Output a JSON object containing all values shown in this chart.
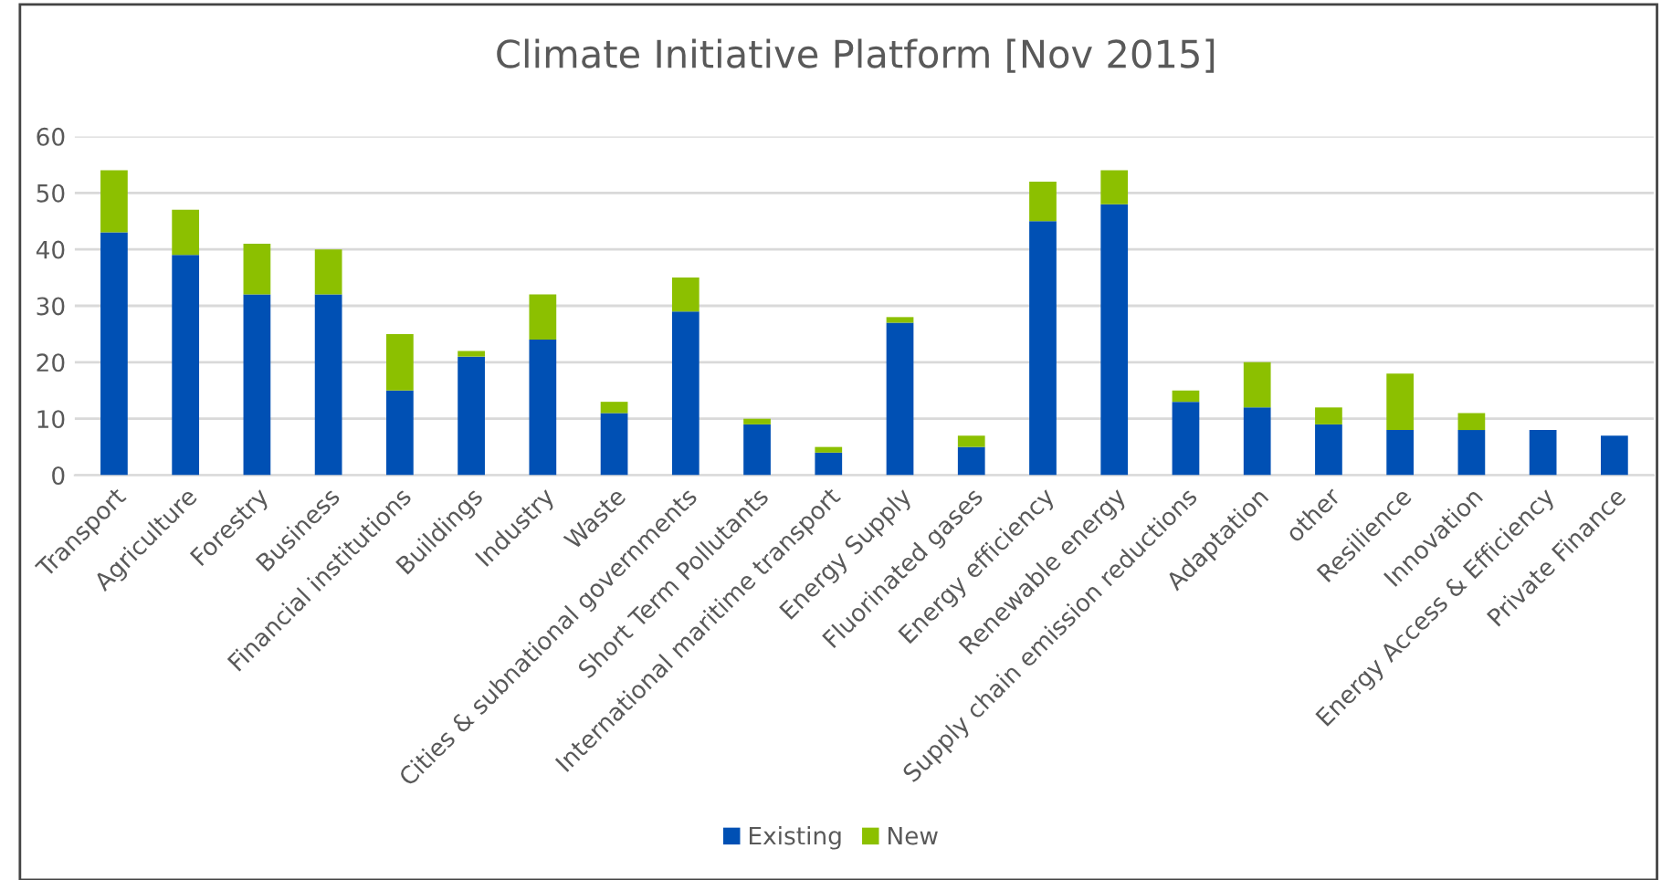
{
  "chart_data": {
    "type": "bar",
    "title": "Climate Initiative Platform [Nov 2015]",
    "categories": [
      "Transport",
      "Agriculture",
      "Forestry",
      "Business",
      "Financial institutions",
      "Buildings",
      "Industry",
      "Waste",
      "Cities & subnational governments",
      "Short Term Pollutants",
      "International maritime transport",
      "Energy Supply",
      "Fluorinated gases",
      "Energy efficiency",
      "Renewable energy",
      "Supply chain emission reductions",
      "Adaptation",
      "other",
      "Resilience",
      "Innovation",
      "Energy Access & Efficiency",
      "Private Finance"
    ],
    "stacked": true,
    "series": [
      {
        "name": "Existing",
        "color": "#0050b4",
        "values": [
          43,
          39,
          32,
          32,
          15,
          21,
          24,
          11,
          29,
          9,
          4,
          27,
          5,
          45,
          48,
          13,
          12,
          9,
          8,
          8,
          8,
          7
        ]
      },
      {
        "name": "New",
        "color": "#8cc000",
        "values": [
          11,
          8,
          9,
          8,
          10,
          1,
          8,
          2,
          6,
          1,
          1,
          1,
          2,
          7,
          6,
          2,
          8,
          3,
          10,
          3,
          0,
          0
        ]
      }
    ],
    "ylim": [
      0,
      60
    ],
    "yticks": [
      0,
      10,
      20,
      30,
      40,
      50,
      60
    ],
    "grid": "y",
    "legend": "bottom"
  }
}
